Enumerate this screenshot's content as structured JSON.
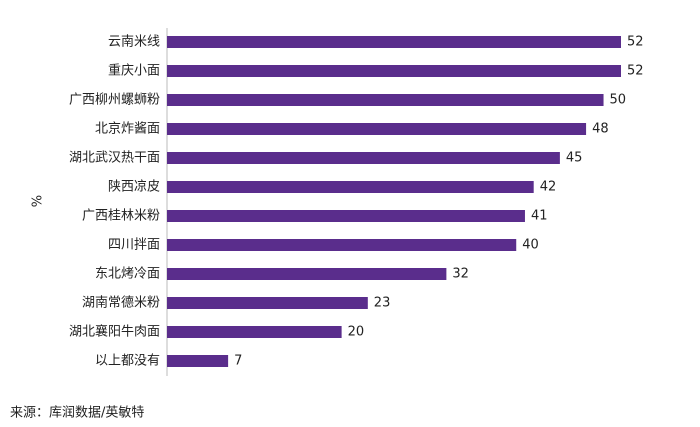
{
  "chart_data": {
    "type": "bar",
    "orientation": "horizontal",
    "y_label": "%",
    "categories": [
      "云南米线",
      "重庆小面",
      "广西柳州螺蛳粉",
      "北京炸酱面",
      "湖北武汉热干面",
      "陕西凉皮",
      "广西桂林米粉",
      "四川拌面",
      "东北烤冷面",
      "湖南常德米粉",
      "湖北襄阳牛肉面",
      "以上都没有"
    ],
    "values": [
      52,
      52,
      50,
      48,
      45,
      42,
      41,
      40,
      32,
      23,
      20,
      7
    ],
    "color": "#5a2d8c",
    "source": "来源：库润数据/英敏特"
  }
}
